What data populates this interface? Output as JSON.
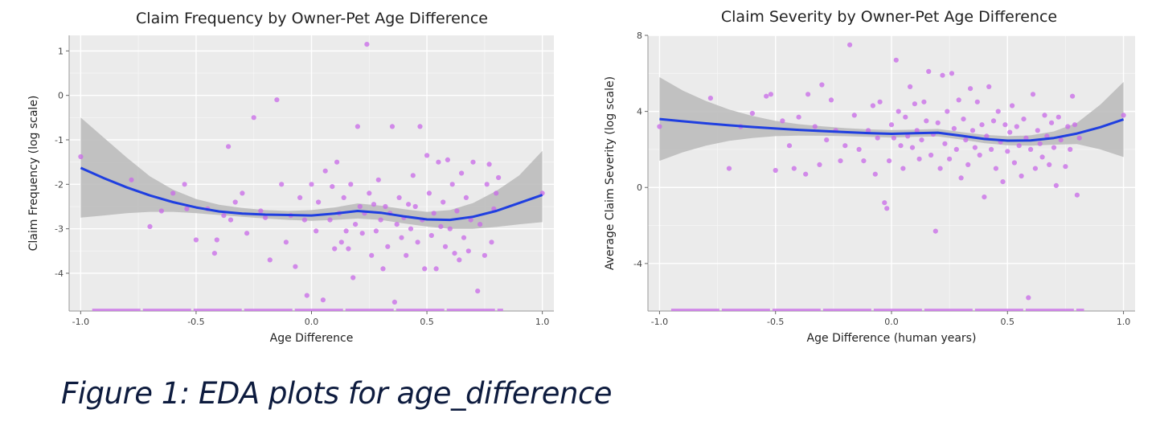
{
  "caption": "Figure 1: EDA plots for age_difference",
  "chart_data": [
    {
      "type": "scatter",
      "title": "Claim Frequency by Owner-Pet Age Difference",
      "xlabel": "Age Difference",
      "ylabel": "Claim Frequency (log scale)",
      "xlim": [
        -1.05,
        1.05
      ],
      "ylim": [
        -4.85,
        1.35
      ],
      "xticks": [
        -1.0,
        -0.5,
        0.0,
        0.5,
        1.0
      ],
      "xtick_labels": [
        "-1.0",
        "-0.5",
        "0.0",
        "0.5",
        "1.0"
      ],
      "yticks": [
        1,
        0,
        -1,
        -2,
        -3,
        -4
      ],
      "ytick_labels": [
        "1",
        "0",
        "-1",
        "-2",
        "-3",
        "-4"
      ],
      "grid": true,
      "point_color": "#c96de8",
      "line_color": "#1f3fe0",
      "band_color": "#bdbdbd",
      "background": "#ebebeb",
      "points": [
        [
          -1.0,
          -1.38
        ],
        [
          -0.78,
          -1.9
        ],
        [
          -0.7,
          -2.95
        ],
        [
          -0.65,
          -2.6
        ],
        [
          -0.6,
          -2.2
        ],
        [
          -0.55,
          -2.0
        ],
        [
          -0.54,
          -2.55
        ],
        [
          -0.5,
          -3.25
        ],
        [
          -0.45,
          -2.55
        ],
        [
          -0.42,
          -3.55
        ],
        [
          -0.41,
          -3.25
        ],
        [
          -0.38,
          -2.7
        ],
        [
          -0.36,
          -1.15
        ],
        [
          -0.35,
          -2.8
        ],
        [
          -0.33,
          -2.4
        ],
        [
          -0.3,
          -2.2
        ],
        [
          -0.28,
          -3.1
        ],
        [
          -0.25,
          -0.5
        ],
        [
          -0.22,
          -2.6
        ],
        [
          -0.2,
          -2.75
        ],
        [
          -0.18,
          -3.7
        ],
        [
          -0.15,
          -0.1
        ],
        [
          -0.13,
          -2.0
        ],
        [
          -0.11,
          -3.3
        ],
        [
          -0.09,
          -2.7
        ],
        [
          -0.07,
          -3.85
        ],
        [
          -0.05,
          -2.3
        ],
        [
          -0.03,
          -2.8
        ],
        [
          -0.02,
          -4.5
        ],
        [
          0.0,
          -2.0
        ],
        [
          0.02,
          -3.05
        ],
        [
          0.03,
          -2.4
        ],
        [
          0.05,
          -4.6
        ],
        [
          0.06,
          -1.7
        ],
        [
          0.08,
          -2.8
        ],
        [
          0.09,
          -2.05
        ],
        [
          0.1,
          -3.45
        ],
        [
          0.11,
          -1.5
        ],
        [
          0.12,
          -2.65
        ],
        [
          0.13,
          -3.3
        ],
        [
          0.14,
          -2.3
        ],
        [
          0.15,
          -3.05
        ],
        [
          0.16,
          -3.45
        ],
        [
          0.17,
          -2.0
        ],
        [
          0.18,
          -4.1
        ],
        [
          0.19,
          -2.9
        ],
        [
          0.2,
          -0.7
        ],
        [
          0.21,
          -2.5
        ],
        [
          0.22,
          -3.1
        ],
        [
          0.23,
          -2.65
        ],
        [
          0.24,
          1.15
        ],
        [
          0.25,
          -2.2
        ],
        [
          0.26,
          -3.6
        ],
        [
          0.27,
          -2.45
        ],
        [
          0.28,
          -3.05
        ],
        [
          0.29,
          -1.9
        ],
        [
          0.3,
          -2.8
        ],
        [
          0.31,
          -3.9
        ],
        [
          0.32,
          -2.5
        ],
        [
          0.33,
          -3.4
        ],
        [
          0.34,
          -2.65
        ],
        [
          0.35,
          -0.7
        ],
        [
          0.36,
          -4.65
        ],
        [
          0.37,
          -2.9
        ],
        [
          0.38,
          -2.3
        ],
        [
          0.39,
          -3.2
        ],
        [
          0.4,
          -2.75
        ],
        [
          0.41,
          -3.6
        ],
        [
          0.42,
          -2.45
        ],
        [
          0.43,
          -3.0
        ],
        [
          0.44,
          -1.8
        ],
        [
          0.45,
          -2.5
        ],
        [
          0.46,
          -3.3
        ],
        [
          0.47,
          -0.7
        ],
        [
          0.48,
          -2.8
        ],
        [
          0.49,
          -3.9
        ],
        [
          0.5,
          -1.35
        ],
        [
          0.51,
          -2.2
        ],
        [
          0.52,
          -3.15
        ],
        [
          0.53,
          -2.65
        ],
        [
          0.54,
          -3.9
        ],
        [
          0.55,
          -1.5
        ],
        [
          0.56,
          -2.95
        ],
        [
          0.57,
          -2.4
        ],
        [
          0.58,
          -3.4
        ],
        [
          0.59,
          -1.45
        ],
        [
          0.6,
          -3.0
        ],
        [
          0.61,
          -2.0
        ],
        [
          0.62,
          -3.55
        ],
        [
          0.63,
          -2.6
        ],
        [
          0.64,
          -3.7
        ],
        [
          0.65,
          -1.75
        ],
        [
          0.66,
          -3.2
        ],
        [
          0.67,
          -2.3
        ],
        [
          0.68,
          -3.5
        ],
        [
          0.69,
          -2.8
        ],
        [
          0.7,
          -1.5
        ],
        [
          0.72,
          -4.4
        ],
        [
          0.73,
          -2.9
        ],
        [
          0.75,
          -3.6
        ],
        [
          0.76,
          -2.0
        ],
        [
          0.77,
          -1.55
        ],
        [
          0.78,
          -3.3
        ],
        [
          0.79,
          -2.55
        ],
        [
          0.8,
          -2.2
        ],
        [
          0.81,
          -1.85
        ],
        [
          1.0,
          -2.2
        ]
      ],
      "zero_claims": {
        "x_range": [
          -0.95,
          0.83
        ],
        "y": -4.85
      },
      "smooth": {
        "x": [
          -1.0,
          -0.9,
          -0.8,
          -0.7,
          -0.6,
          -0.5,
          -0.4,
          -0.3,
          -0.2,
          -0.1,
          0.0,
          0.1,
          0.2,
          0.3,
          0.4,
          0.5,
          0.6,
          0.7,
          0.8,
          0.9,
          1.0
        ],
        "y": [
          -1.63,
          -1.86,
          -2.07,
          -2.25,
          -2.4,
          -2.52,
          -2.61,
          -2.66,
          -2.68,
          -2.69,
          -2.7,
          -2.66,
          -2.6,
          -2.64,
          -2.72,
          -2.79,
          -2.8,
          -2.73,
          -2.6,
          -2.42,
          -2.24
        ],
        "lower": [
          -2.75,
          -2.7,
          -2.65,
          -2.62,
          -2.62,
          -2.65,
          -2.69,
          -2.73,
          -2.77,
          -2.8,
          -2.82,
          -2.8,
          -2.77,
          -2.8,
          -2.88,
          -2.95,
          -3.0,
          -3.0,
          -2.96,
          -2.9,
          -2.85
        ],
        "upper": [
          -0.5,
          -0.95,
          -1.4,
          -1.82,
          -2.12,
          -2.33,
          -2.46,
          -2.53,
          -2.58,
          -2.6,
          -2.58,
          -2.52,
          -2.43,
          -2.48,
          -2.56,
          -2.62,
          -2.58,
          -2.42,
          -2.15,
          -1.8,
          -1.25
        ]
      }
    },
    {
      "type": "scatter",
      "title": "Claim Severity by Owner-Pet Age Difference",
      "xlabel": "Age Difference (human years)",
      "ylabel": "Average Claim Severity (log scale)",
      "xlim": [
        -1.05,
        1.05
      ],
      "ylim": [
        -6.5,
        8.0
      ],
      "xticks": [
        -1.0,
        -0.5,
        0.0,
        0.5,
        1.0
      ],
      "xtick_labels": [
        "-1.0",
        "-0.5",
        "0.0",
        "0.5",
        "1.0"
      ],
      "yticks": [
        8,
        4,
        0,
        -4
      ],
      "ytick_labels": [
        "8",
        "4",
        "0",
        "-4"
      ],
      "grid": true,
      "point_color": "#c96de8",
      "line_color": "#1f3fe0",
      "band_color": "#bdbdbd",
      "background": "#ebebeb",
      "points": [
        [
          -1.0,
          3.2
        ],
        [
          -0.78,
          4.7
        ],
        [
          -0.7,
          1.0
        ],
        [
          -0.65,
          3.2
        ],
        [
          -0.6,
          3.9
        ],
        [
          -0.54,
          4.8
        ],
        [
          -0.52,
          4.9
        ],
        [
          -0.5,
          0.9
        ],
        [
          -0.47,
          3.5
        ],
        [
          -0.44,
          2.2
        ],
        [
          -0.42,
          1.0
        ],
        [
          -0.4,
          3.7
        ],
        [
          -0.37,
          0.7
        ],
        [
          -0.36,
          4.9
        ],
        [
          -0.33,
          3.2
        ],
        [
          -0.31,
          1.2
        ],
        [
          -0.3,
          5.4
        ],
        [
          -0.28,
          2.5
        ],
        [
          -0.26,
          4.6
        ],
        [
          -0.24,
          3.0
        ],
        [
          -0.22,
          1.4
        ],
        [
          -0.2,
          2.2
        ],
        [
          -0.18,
          7.5
        ],
        [
          -0.16,
          3.8
        ],
        [
          -0.14,
          2.0
        ],
        [
          -0.12,
          1.4
        ],
        [
          -0.1,
          3.0
        ],
        [
          -0.08,
          4.3
        ],
        [
          -0.07,
          0.7
        ],
        [
          -0.06,
          2.6
        ],
        [
          -0.05,
          4.5
        ],
        [
          -0.03,
          -0.8
        ],
        [
          -0.02,
          -1.1
        ],
        [
          -0.01,
          1.4
        ],
        [
          0.0,
          3.3
        ],
        [
          0.01,
          2.6
        ],
        [
          0.02,
          6.7
        ],
        [
          0.03,
          4.0
        ],
        [
          0.04,
          2.2
        ],
        [
          0.05,
          1.0
        ],
        [
          0.06,
          3.7
        ],
        [
          0.07,
          2.7
        ],
        [
          0.08,
          5.3
        ],
        [
          0.09,
          2.1
        ],
        [
          0.1,
          4.4
        ],
        [
          0.11,
          3.0
        ],
        [
          0.12,
          1.5
        ],
        [
          0.13,
          2.5
        ],
        [
          0.14,
          4.5
        ],
        [
          0.15,
          3.5
        ],
        [
          0.16,
          6.1
        ],
        [
          0.17,
          1.7
        ],
        [
          0.18,
          2.8
        ],
        [
          0.19,
          -2.3
        ],
        [
          0.2,
          3.4
        ],
        [
          0.21,
          1.0
        ],
        [
          0.22,
          5.9
        ],
        [
          0.23,
          2.3
        ],
        [
          0.24,
          4.0
        ],
        [
          0.25,
          1.5
        ],
        [
          0.26,
          6.0
        ],
        [
          0.27,
          3.1
        ],
        [
          0.28,
          2.0
        ],
        [
          0.29,
          4.6
        ],
        [
          0.3,
          0.5
        ],
        [
          0.31,
          3.6
        ],
        [
          0.32,
          2.5
        ],
        [
          0.33,
          1.2
        ],
        [
          0.34,
          5.2
        ],
        [
          0.35,
          3.0
        ],
        [
          0.36,
          2.1
        ],
        [
          0.37,
          4.5
        ],
        [
          0.38,
          1.7
        ],
        [
          0.39,
          3.3
        ],
        [
          0.4,
          -0.5
        ],
        [
          0.41,
          2.7
        ],
        [
          0.42,
          5.3
        ],
        [
          0.43,
          2.0
        ],
        [
          0.44,
          3.5
        ],
        [
          0.45,
          1.0
        ],
        [
          0.46,
          4.0
        ],
        [
          0.47,
          2.4
        ],
        [
          0.48,
          0.3
        ],
        [
          0.49,
          3.3
        ],
        [
          0.5,
          1.9
        ],
        [
          0.51,
          2.9
        ],
        [
          0.52,
          4.3
        ],
        [
          0.53,
          1.3
        ],
        [
          0.54,
          3.2
        ],
        [
          0.55,
          2.2
        ],
        [
          0.56,
          0.6
        ],
        [
          0.57,
          3.6
        ],
        [
          0.58,
          2.6
        ],
        [
          0.59,
          -5.8
        ],
        [
          0.6,
          2.0
        ],
        [
          0.61,
          4.9
        ],
        [
          0.62,
          1.0
        ],
        [
          0.63,
          3.0
        ],
        [
          0.64,
          2.3
        ],
        [
          0.65,
          1.6
        ],
        [
          0.66,
          3.8
        ],
        [
          0.67,
          2.7
        ],
        [
          0.68,
          1.2
        ],
        [
          0.69,
          3.4
        ],
        [
          0.7,
          2.1
        ],
        [
          0.71,
          0.1
        ],
        [
          0.72,
          3.7
        ],
        [
          0.73,
          2.5
        ],
        [
          0.75,
          1.1
        ],
        [
          0.76,
          3.2
        ],
        [
          0.77,
          2.0
        ],
        [
          0.78,
          4.8
        ],
        [
          0.79,
          3.3
        ],
        [
          0.8,
          -0.4
        ],
        [
          0.81,
          2.6
        ],
        [
          1.0,
          3.8
        ]
      ],
      "zero_claims": {
        "x_range": [
          -0.95,
          0.83
        ],
        "y": -6.5
      },
      "smooth": {
        "x": [
          -1.0,
          -0.9,
          -0.8,
          -0.7,
          -0.6,
          -0.5,
          -0.4,
          -0.3,
          -0.2,
          -0.1,
          0.0,
          0.1,
          0.2,
          0.3,
          0.4,
          0.5,
          0.6,
          0.7,
          0.8,
          0.9,
          1.0
        ],
        "y": [
          3.6,
          3.48,
          3.37,
          3.27,
          3.18,
          3.1,
          3.03,
          2.97,
          2.91,
          2.86,
          2.82,
          2.85,
          2.88,
          2.72,
          2.55,
          2.46,
          2.47,
          2.6,
          2.84,
          3.17,
          3.58
        ],
        "lower": [
          1.4,
          1.85,
          2.2,
          2.45,
          2.6,
          2.7,
          2.73,
          2.72,
          2.7,
          2.66,
          2.62,
          2.66,
          2.68,
          2.52,
          2.33,
          2.22,
          2.2,
          2.25,
          2.28,
          2.0,
          1.6
        ],
        "upper": [
          5.8,
          5.1,
          4.55,
          4.1,
          3.76,
          3.5,
          3.33,
          3.22,
          3.12,
          3.06,
          3.02,
          3.04,
          3.08,
          2.92,
          2.77,
          2.7,
          2.74,
          2.95,
          3.4,
          4.35,
          5.55
        ]
      }
    }
  ]
}
